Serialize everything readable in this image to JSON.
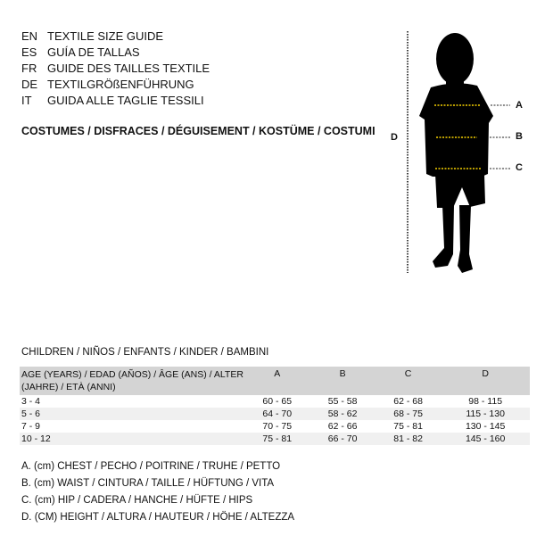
{
  "languages": [
    {
      "code": "EN",
      "text": "TEXTILE SIZE GUIDE"
    },
    {
      "code": "ES",
      "text": "GUÍA DE TALLAS"
    },
    {
      "code": "FR",
      "text": "GUIDE DES TAILLES TEXTILE"
    },
    {
      "code": "DE",
      "text": "TEXTILGRÖßENFÜHRUNG"
    },
    {
      "code": "IT",
      "text": "GUIDA ALLE TAGLIE TESSILI"
    }
  ],
  "category": "COSTUMES / DISFRACES / DÉGUISEMENT / KOSTÜME / COSTUMI",
  "figure": {
    "labels": {
      "a": "A",
      "b": "B",
      "c": "C",
      "d": "D"
    },
    "measure_line_color": "#f5d000"
  },
  "table": {
    "subtitle": "CHILDREN / NIÑOS / ENFANTS / KINDER / BAMBINI",
    "headers": [
      "AGE (YEARS) / EDAD (AÑOS) / ÂGE (ANS) / ALTER (JAHRE) / ETÀ (ANNI)",
      "A",
      "B",
      "C",
      "D"
    ],
    "rows": [
      [
        "3 - 4",
        "60 - 65",
        "55 - 58",
        "62 - 68",
        "98 - 115"
      ],
      [
        "5 - 6",
        "64 - 70",
        "58 - 62",
        "68 - 75",
        "115 - 130"
      ],
      [
        "7 - 9",
        "70 - 75",
        "62 - 66",
        "75 - 81",
        "130 - 145"
      ],
      [
        "10 - 12",
        "75 - 81",
        "66 - 70",
        "81 - 82",
        "145 - 160"
      ]
    ]
  },
  "legend": [
    "A. (cm) CHEST / PECHO / POITRINE / TRUHE / PETTO",
    "B. (cm) WAIST / CINTURA / TAILLE / HÜFTUNG / VITA",
    "C. (cm) HIP / CADERA / HANCHE / HÜFTE / HIPS",
    "D. (CM) HEIGHT / ALTURA / HAUTEUR / HÖHE / ALTEZZA"
  ]
}
